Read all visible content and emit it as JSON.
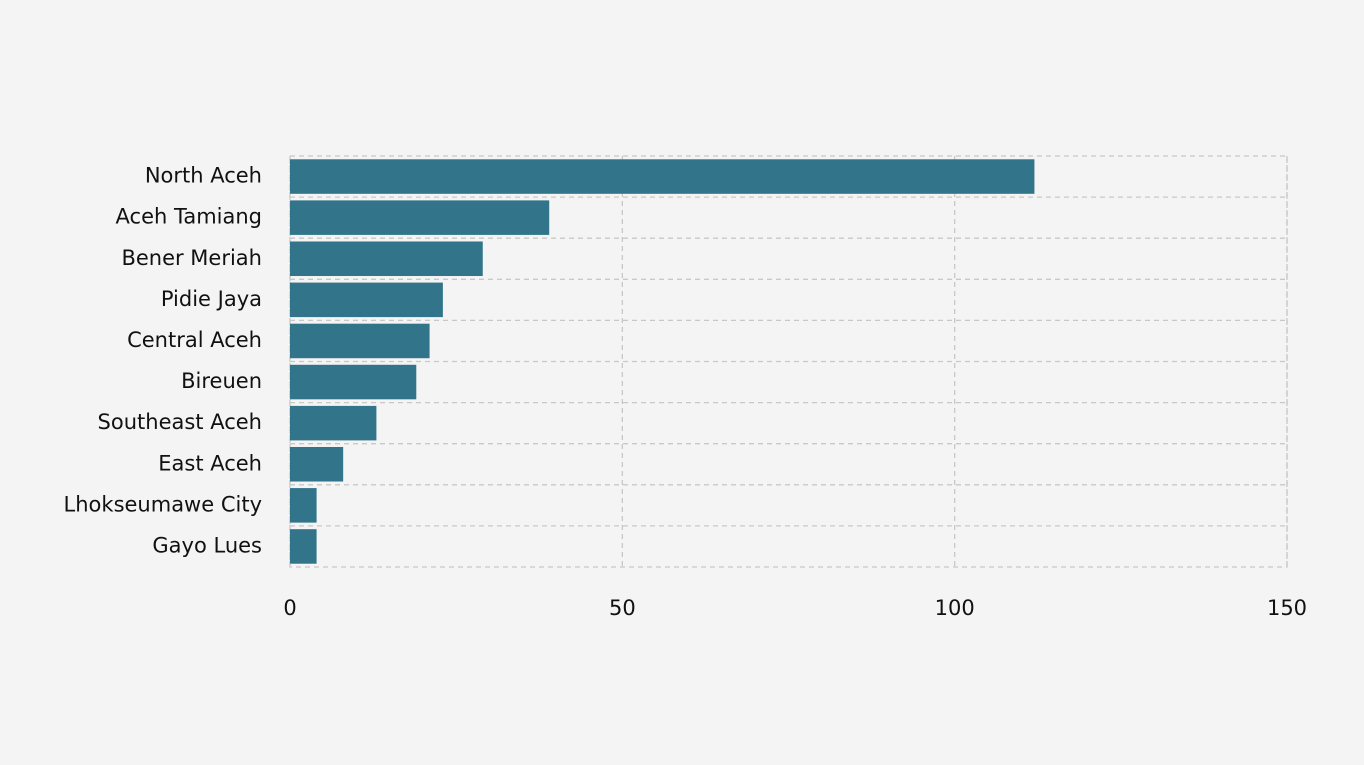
{
  "chart_data": {
    "type": "bar",
    "orientation": "horizontal",
    "categories": [
      "North Aceh",
      "Aceh Tamiang",
      "Bener Meriah",
      "Pidie Jaya",
      "Central Aceh",
      "Bireuen",
      "Southeast Aceh",
      "East Aceh",
      "Lhokseumawe City",
      "Gayo Lues"
    ],
    "values": [
      112,
      39,
      29,
      23,
      21,
      19,
      13,
      8,
      4,
      4
    ],
    "color": "#32748a",
    "xlim": [
      0,
      150
    ],
    "xticks": [
      0,
      50,
      100,
      150
    ],
    "grid": true
  }
}
